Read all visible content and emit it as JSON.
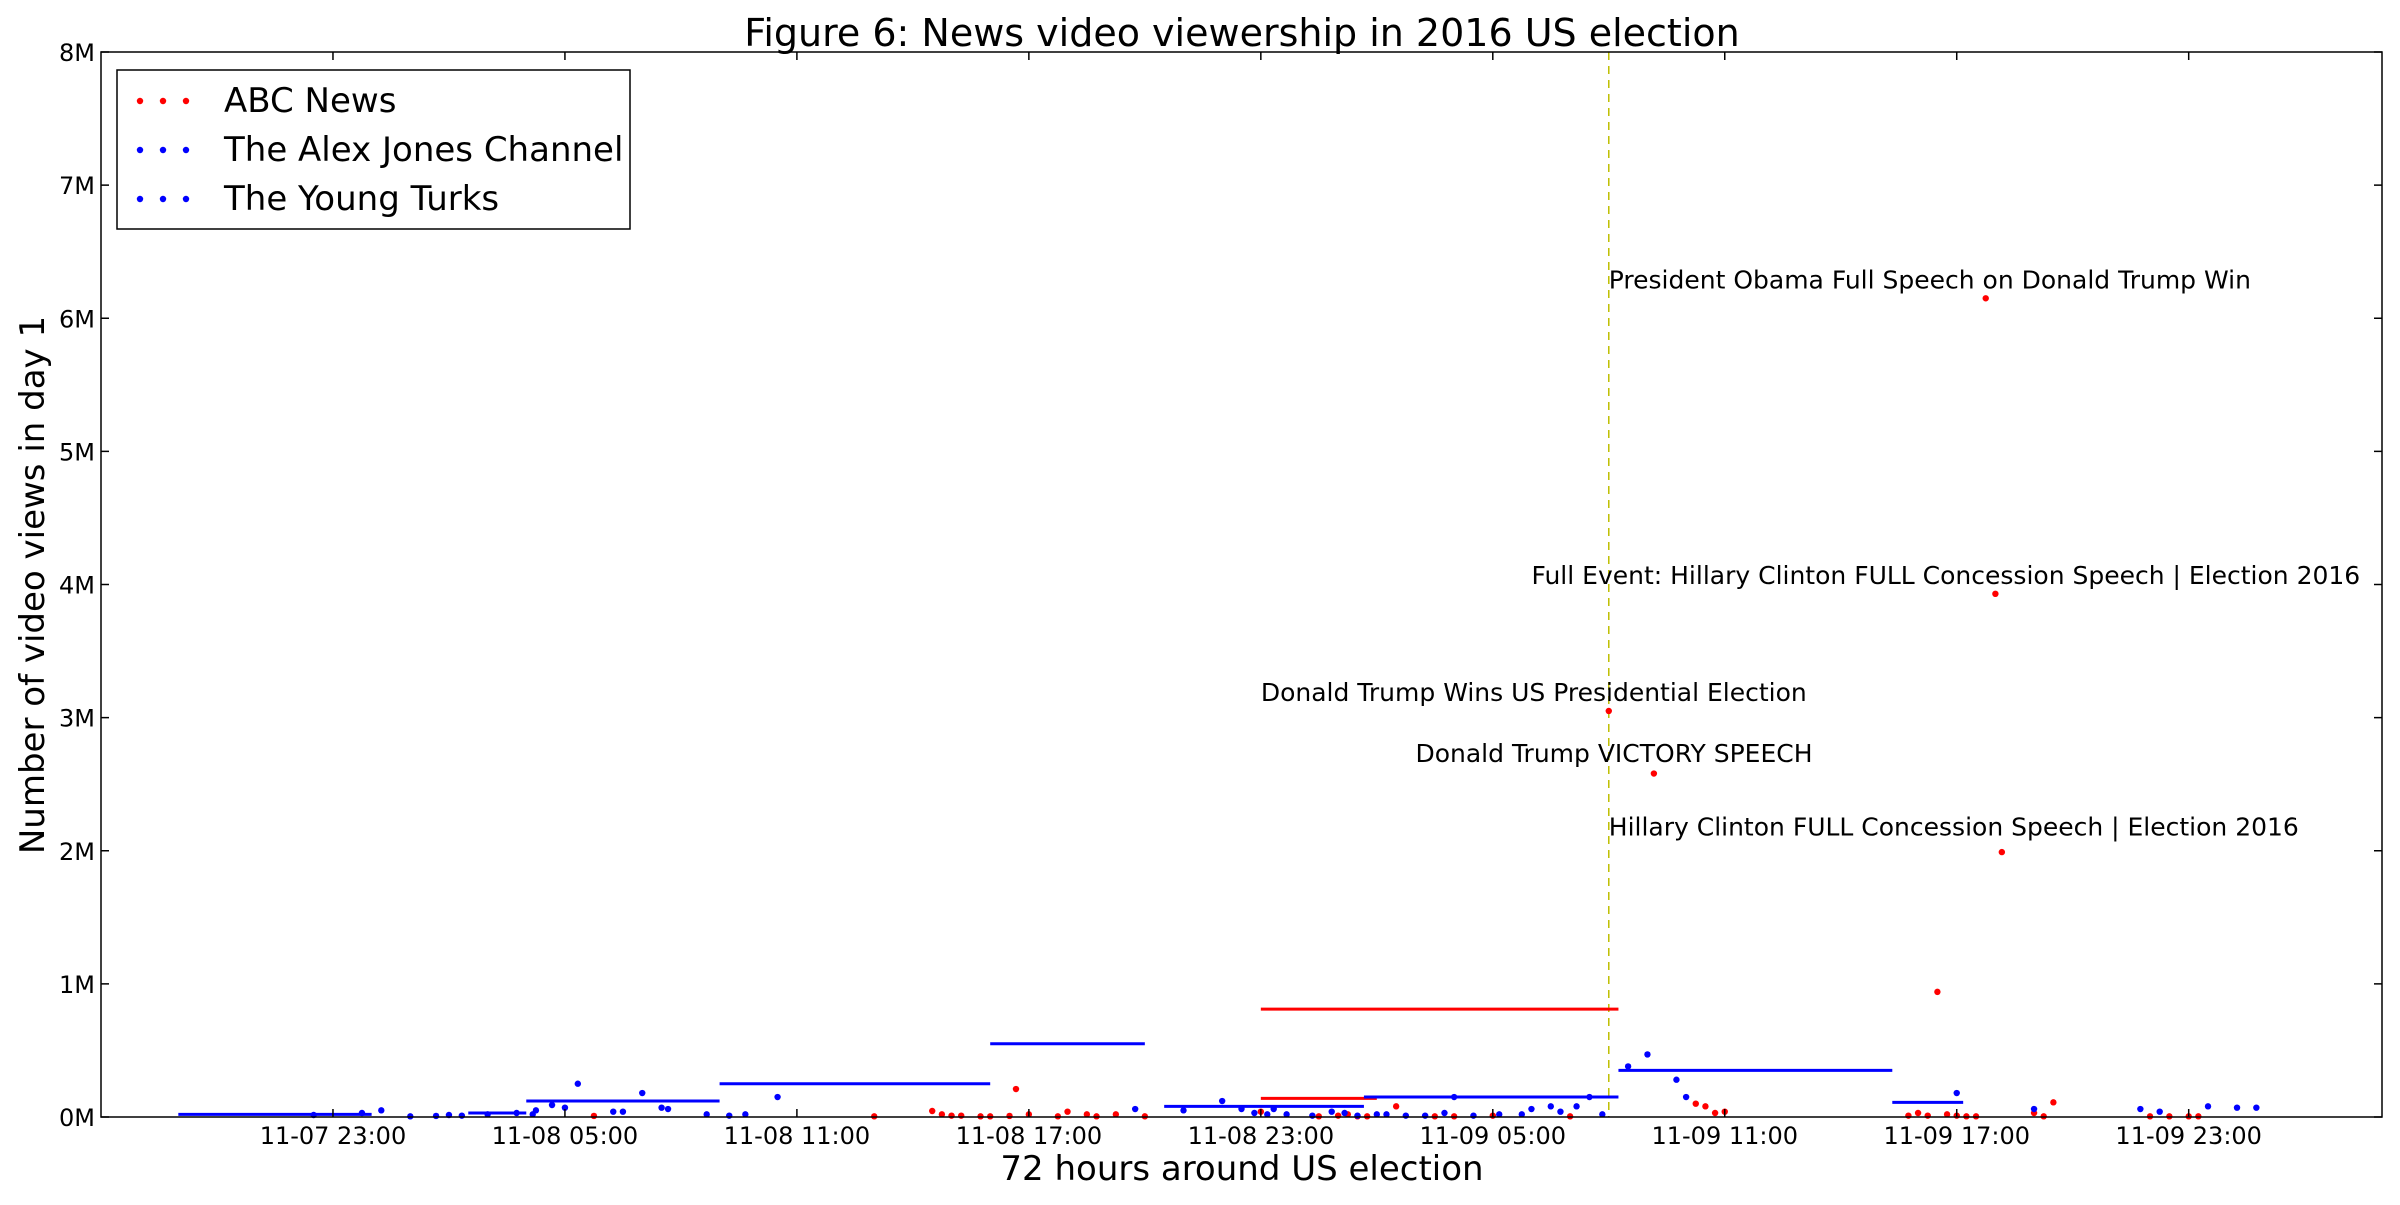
{
  "chart_data": {
    "type": "scatter",
    "title": "Figure 6: News video viewership in 2016 US election",
    "xlabel": "72 hours around US election",
    "ylabel": "Number of video views in day 1",
    "xlim": [
      "2016-11-07 17:00",
      "2016-11-10 04:00"
    ],
    "ylim": [
      0,
      8000000
    ],
    "x_ticks": [
      "2016-11-07 23:00",
      "2016-11-08 05:00",
      "2016-11-08 11:00",
      "2016-11-08 17:00",
      "2016-11-08 23:00",
      "2016-11-09 05:00",
      "2016-11-09 11:00",
      "2016-11-09 17:00",
      "2016-11-09 23:00"
    ],
    "x_tick_labels": [
      "11-07 23:00",
      "11-08 05:00",
      "11-08 11:00",
      "11-08 17:00",
      "11-08 23:00",
      "11-09 05:00",
      "11-09 11:00",
      "11-09 17:00",
      "11-09 23:00"
    ],
    "y_ticks": [
      0,
      1000000,
      2000000,
      3000000,
      4000000,
      5000000,
      6000000,
      7000000,
      8000000
    ],
    "y_tick_labels": [
      "0M",
      "1M",
      "2M",
      "3M",
      "4M",
      "5M",
      "6M",
      "7M",
      "8M"
    ],
    "legend_position": "top-left",
    "grid": false,
    "election_line": "2016-11-09 08:00",
    "series": [
      {
        "name": "ABC News",
        "color": "#ff0000",
        "points": [
          [
            "2016-11-08 05:45",
            8000
          ],
          [
            "2016-11-08 13:00",
            5000
          ],
          [
            "2016-11-08 14:30",
            45000
          ],
          [
            "2016-11-08 14:45",
            20000
          ],
          [
            "2016-11-08 15:00",
            10000
          ],
          [
            "2016-11-08 15:15",
            10000
          ],
          [
            "2016-11-08 15:45",
            5000
          ],
          [
            "2016-11-08 16:00",
            5000
          ],
          [
            "2016-11-08 16:30",
            8000
          ],
          [
            "2016-11-08 16:40",
            210000
          ],
          [
            "2016-11-08 17:00",
            20000
          ],
          [
            "2016-11-08 17:45",
            5000
          ],
          [
            "2016-11-08 18:00",
            40000
          ],
          [
            "2016-11-08 18:30",
            20000
          ],
          [
            "2016-11-08 18:45",
            5000
          ],
          [
            "2016-11-08 19:15",
            20000
          ],
          [
            "2016-11-08 20:00",
            5000
          ],
          [
            "2016-11-08 23:00",
            40000
          ],
          [
            "2016-11-09 00:30",
            5000
          ],
          [
            "2016-11-09 01:00",
            10000
          ],
          [
            "2016-11-09 01:15",
            20000
          ],
          [
            "2016-11-09 01:30",
            5000
          ],
          [
            "2016-11-09 01:45",
            5000
          ],
          [
            "2016-11-09 02:30",
            80000
          ],
          [
            "2016-11-09 03:30",
            5000
          ],
          [
            "2016-11-09 04:00",
            5000
          ],
          [
            "2016-11-09 05:00",
            10000
          ],
          [
            "2016-11-09 07:00",
            5000
          ],
          [
            "2016-11-09 08:00",
            3050000
          ],
          [
            "2016-11-09 09:10",
            2580000
          ],
          [
            "2016-11-09 10:15",
            100000
          ],
          [
            "2016-11-09 10:30",
            80000
          ],
          [
            "2016-11-09 10:45",
            30000
          ],
          [
            "2016-11-09 11:00",
            40000
          ],
          [
            "2016-11-09 15:45",
            10000
          ],
          [
            "2016-11-09 16:00",
            30000
          ],
          [
            "2016-11-09 16:15",
            10000
          ],
          [
            "2016-11-09 16:30",
            940000
          ],
          [
            "2016-11-09 16:45",
            20000
          ],
          [
            "2016-11-09 17:00",
            10000
          ],
          [
            "2016-11-09 17:15",
            5000
          ],
          [
            "2016-11-09 17:30",
            5000
          ],
          [
            "2016-11-09 17:45",
            6150000
          ],
          [
            "2016-11-09 18:00",
            3930000
          ],
          [
            "2016-11-09 18:10",
            1990000
          ],
          [
            "2016-11-09 19:00",
            30000
          ],
          [
            "2016-11-09 19:15",
            5000
          ],
          [
            "2016-11-09 19:30",
            110000
          ],
          [
            "2016-11-09 22:00",
            5000
          ],
          [
            "2016-11-09 22:30",
            5000
          ],
          [
            "2016-11-09 23:00",
            5000
          ],
          [
            "2016-11-09 23:15",
            5000
          ]
        ],
        "averages": [
          {
            "from": "2016-11-08 23:00",
            "to": "2016-11-09 08:15",
            "value": 810000
          },
          {
            "from": "2016-11-08 23:00",
            "to": "2016-11-09 02:00",
            "value": 140000
          }
        ]
      },
      {
        "name": "The Alex Jones Channel",
        "color": "#0000ff",
        "points": [
          [
            "2016-11-07 22:30",
            15000
          ],
          [
            "2016-11-07 23:45",
            30000
          ],
          [
            "2016-11-08 00:15",
            50000
          ],
          [
            "2016-11-08 01:40",
            8000
          ],
          [
            "2016-11-08 02:20",
            10000
          ],
          [
            "2016-11-08 03:00",
            20000
          ],
          [
            "2016-11-08 04:15",
            50000
          ],
          [
            "2016-11-08 04:40",
            90000
          ],
          [
            "2016-11-08 05:00",
            70000
          ],
          [
            "2016-11-08 05:20",
            250000
          ],
          [
            "2016-11-08 06:30",
            40000
          ],
          [
            "2016-11-08 07:00",
            180000
          ],
          [
            "2016-11-08 07:30",
            70000
          ],
          [
            "2016-11-08 08:40",
            20000
          ],
          [
            "2016-11-08 10:30",
            150000
          ],
          [
            "2016-11-08 19:45",
            60000
          ],
          [
            "2016-11-08 21:00",
            50000
          ],
          [
            "2016-11-08 22:00",
            120000
          ],
          [
            "2016-11-08 22:30",
            60000
          ],
          [
            "2016-11-08 23:10",
            20000
          ],
          [
            "2016-11-08 23:40",
            20000
          ],
          [
            "2016-11-09 00:50",
            40000
          ],
          [
            "2016-11-09 02:15",
            20000
          ],
          [
            "2016-11-09 03:15",
            10000
          ],
          [
            "2016-11-09 04:00",
            150000
          ],
          [
            "2016-11-09 05:10",
            20000
          ],
          [
            "2016-11-09 06:30",
            80000
          ],
          [
            "2016-11-09 07:30",
            150000
          ],
          [
            "2016-11-09 08:30",
            380000
          ],
          [
            "2016-11-09 09:00",
            470000
          ],
          [
            "2016-11-09 09:45",
            280000
          ],
          [
            "2016-11-09 10:00",
            150000
          ],
          [
            "2016-11-09 17:00",
            180000
          ],
          [
            "2016-11-09 19:00",
            60000
          ],
          [
            "2016-11-09 21:45",
            60000
          ],
          [
            "2016-11-09 22:15",
            40000
          ],
          [
            "2016-11-09 23:30",
            80000
          ],
          [
            "2016-11-10 00:15",
            70000
          ],
          [
            "2016-11-10 00:45",
            70000
          ]
        ],
        "averages": [
          {
            "from": "2016-11-07 19:00",
            "to": "2016-11-08 00:00",
            "value": 20000
          },
          {
            "from": "2016-11-08 02:30",
            "to": "2016-11-08 04:00",
            "value": 30000
          },
          {
            "from": "2016-11-08 04:00",
            "to": "2016-11-08 09:00",
            "value": 120000
          },
          {
            "from": "2016-11-08 09:00",
            "to": "2016-11-08 16:00",
            "value": 250000
          },
          {
            "from": "2016-11-08 16:00",
            "to": "2016-11-08 20:00",
            "value": 550000
          },
          {
            "from": "2016-11-08 20:30",
            "to": "2016-11-09 01:40",
            "value": 80000
          },
          {
            "from": "2016-11-09 01:40",
            "to": "2016-11-09 08:15",
            "value": 150000
          },
          {
            "from": "2016-11-09 08:15",
            "to": "2016-11-09 15:20",
            "value": 350000
          },
          {
            "from": "2016-11-09 15:20",
            "to": "2016-11-09 17:10",
            "value": 110000
          }
        ]
      },
      {
        "name": "The Young Turks",
        "color": "#0000ff",
        "points": [
          [
            "2016-11-08 01:00",
            5000
          ],
          [
            "2016-11-08 02:00",
            15000
          ],
          [
            "2016-11-08 03:45",
            30000
          ],
          [
            "2016-11-08 04:10",
            20000
          ],
          [
            "2016-11-08 06:15",
            40000
          ],
          [
            "2016-11-08 07:40",
            60000
          ],
          [
            "2016-11-08 09:15",
            10000
          ],
          [
            "2016-11-08 09:40",
            20000
          ],
          [
            "2016-11-08 22:50",
            30000
          ],
          [
            "2016-11-08 23:20",
            60000
          ],
          [
            "2016-11-09 00:20",
            10000
          ],
          [
            "2016-11-09 01:10",
            30000
          ],
          [
            "2016-11-09 01:30",
            10000
          ],
          [
            "2016-11-09 02:00",
            20000
          ],
          [
            "2016-11-09 02:45",
            10000
          ],
          [
            "2016-11-09 03:45",
            30000
          ],
          [
            "2016-11-09 04:30",
            10000
          ],
          [
            "2016-11-09 05:45",
            20000
          ],
          [
            "2016-11-09 06:00",
            60000
          ],
          [
            "2016-11-09 06:45",
            40000
          ],
          [
            "2016-11-09 07:10",
            80000
          ],
          [
            "2016-11-09 07:50",
            20000
          ]
        ],
        "averages": []
      }
    ],
    "annotations": [
      {
        "text": "President Obama Full Speech on Donald Trump Win",
        "x": "2016-11-09 08:00",
        "y": 6150000
      },
      {
        "text": "Full Event: Hillary Clinton FULL Concession Speech | Election 2016",
        "x": "2016-11-09 06:00",
        "y": 3930000
      },
      {
        "text": "Donald Trump Wins US Presidential Election",
        "x": "2016-11-08 23:00",
        "y": 3050000
      },
      {
        "text": "Donald Trump VICTORY SPEECH",
        "x": "2016-11-09 03:00",
        "y": 2590000
      },
      {
        "text": "Hillary Clinton FULL Concession Speech | Election 2016",
        "x": "2016-11-09 08:00",
        "y": 2040000
      }
    ]
  }
}
